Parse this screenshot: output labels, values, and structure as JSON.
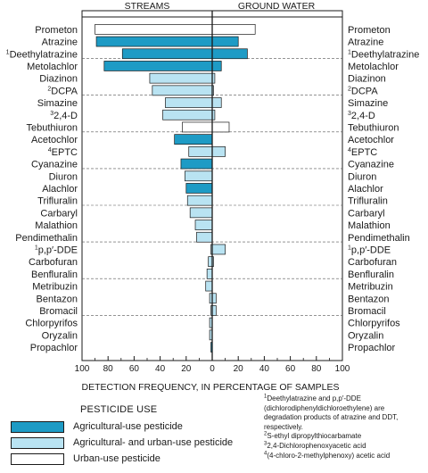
{
  "chart_data": {
    "type": "bar",
    "title": "",
    "xlabel": "DETECTION FREQUENCY, IN PERCENTAGE OF SAMPLES",
    "panels": [
      "STREAMS",
      "GROUND  WATER"
    ],
    "xlim_streams": [
      100,
      0
    ],
    "xlim_ground_water": [
      0,
      100
    ],
    "xticks_streams": [
      "100",
      "80",
      "60",
      "40",
      "20",
      "0"
    ],
    "xticks_ground_water": [
      "20",
      "40",
      "60",
      "80",
      "100"
    ],
    "grid": "dashed group separators",
    "categories": [
      {
        "name": "Prometon",
        "sup": "",
        "use": "urban",
        "streams": 90,
        "ground_water": 33
      },
      {
        "name": "Atrazine",
        "sup": "",
        "use": "agricultural",
        "streams": 89,
        "ground_water": 20
      },
      {
        "name": "Deethylatrazine",
        "sup": "1",
        "use": "agricultural",
        "streams": 69,
        "ground_water": 27
      },
      {
        "name": "Metolachlor",
        "sup": "",
        "use": "agricultural",
        "streams": 83,
        "ground_water": 7
      },
      {
        "name": "Diazinon",
        "sup": "",
        "use": "agricultural-urban",
        "streams": 48,
        "ground_water": 2
      },
      {
        "name": "DCPA",
        "sup": "2",
        "use": "agricultural-urban",
        "streams": 46,
        "ground_water": 1
      },
      {
        "name": "Simazine",
        "sup": "",
        "use": "agricultural-urban",
        "streams": 36,
        "ground_water": 7
      },
      {
        "name": "2,4-D",
        "sup": "3",
        "use": "agricultural-urban",
        "streams": 38,
        "ground_water": 2
      },
      {
        "name": "Tebuthiuron",
        "sup": "",
        "use": "urban",
        "streams": 23,
        "ground_water": 13
      },
      {
        "name": "Acetochlor",
        "sup": "",
        "use": "agricultural",
        "streams": 29,
        "ground_water": 0
      },
      {
        "name": "EPTC",
        "sup": "4",
        "use": "agricultural-urban",
        "streams": 18,
        "ground_water": 10
      },
      {
        "name": "Cyanazine",
        "sup": "",
        "use": "agricultural",
        "streams": 24,
        "ground_water": 0
      },
      {
        "name": "Diuron",
        "sup": "",
        "use": "agricultural-urban",
        "streams": 21,
        "ground_water": 0
      },
      {
        "name": "Alachlor",
        "sup": "",
        "use": "agricultural",
        "streams": 20,
        "ground_water": 0
      },
      {
        "name": "Trifluralin",
        "sup": "",
        "use": "agricultural-urban",
        "streams": 19,
        "ground_water": 0
      },
      {
        "name": "Carbaryl",
        "sup": "",
        "use": "agricultural-urban",
        "streams": 17,
        "ground_water": 0
      },
      {
        "name": "Malathion",
        "sup": "",
        "use": "agricultural-urban",
        "streams": 13,
        "ground_water": 0
      },
      {
        "name": "Pendimethalin",
        "sup": "",
        "use": "agricultural-urban",
        "streams": 12,
        "ground_water": 0
      },
      {
        "name": "p,p′-DDE",
        "sup": "1",
        "use": "agricultural-urban",
        "streams": 1,
        "ground_water": 10
      },
      {
        "name": "Carbofuran",
        "sup": "",
        "use": "agricultural-urban",
        "streams": 3,
        "ground_water": 1
      },
      {
        "name": "Benfluralin",
        "sup": "",
        "use": "agricultural-urban",
        "streams": 4,
        "ground_water": 0
      },
      {
        "name": "Metribuzin",
        "sup": "",
        "use": "agricultural-urban",
        "streams": 5,
        "ground_water": 0
      },
      {
        "name": "Bentazon",
        "sup": "",
        "use": "agricultural-urban",
        "streams": 2,
        "ground_water": 3
      },
      {
        "name": "Bromacil",
        "sup": "",
        "use": "agricultural-urban",
        "streams": 1,
        "ground_water": 3
      },
      {
        "name": "Chlorpyrifos",
        "sup": "",
        "use": "agricultural-urban",
        "streams": 2,
        "ground_water": 0
      },
      {
        "name": "Oryzalin",
        "sup": "",
        "use": "agricultural-urban",
        "streams": 2,
        "ground_water": 0
      },
      {
        "name": "Propachlor",
        "sup": "",
        "use": "agricultural",
        "streams": 1,
        "ground_water": 0
      }
    ],
    "legend": {
      "title": "PESTICIDE  USE",
      "placement": "bottom-left",
      "items": [
        {
          "key": "agricultural",
          "label": "Agricultural-use pesticide",
          "color": "#1e9bc5"
        },
        {
          "key": "agricultural-urban",
          "label": "Agricultural- and urban-use pesticide",
          "color": "#b9e3f2"
        },
        {
          "key": "urban",
          "label": "Urban-use pesticide",
          "color": "#ffffff"
        }
      ]
    },
    "footnotes": [
      {
        "sup": "1",
        "text": "Deethylatrazine and p,p′-DDE (dichlorodiphenyldichloroethylene) are degradation products of atrazine and DDT, respectively."
      },
      {
        "sup": "2",
        "text": "S-ethyl dipropylthiocarbamate"
      },
      {
        "sup": "3",
        "text": "2,4-Dichlorophenoxyacetic acid"
      },
      {
        "sup": "4",
        "text": "(4-chloro-2-methylphenoxy) acetic acid"
      }
    ]
  }
}
